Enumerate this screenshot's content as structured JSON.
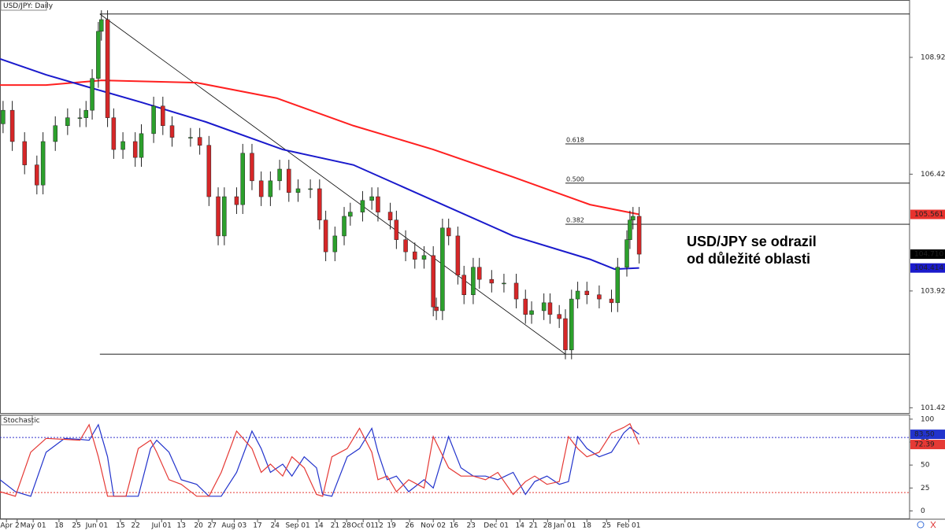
{
  "chart_data": [
    {
      "type": "candlestick",
      "title": "USD/JPY: Daily",
      "x": [
        1,
        4,
        8,
        12,
        14,
        18,
        22,
        26,
        28,
        30,
        32,
        33,
        35,
        37,
        40,
        44,
        46,
        50,
        53,
        56,
        62,
        65,
        68,
        71,
        73,
        77,
        79,
        82,
        85,
        88,
        91,
        94,
        97,
        101,
        104,
        106,
        109,
        112,
        114,
        118,
        121,
        123,
        127,
        129,
        132,
        135,
        138,
        141,
        142,
        144,
        146,
        149,
        151,
        154,
        156,
        160,
        164,
        168,
        171,
        173,
        177,
        179,
        182,
        184,
        186,
        188,
        191,
        195,
        199,
        201,
        204,
        205,
        206,
        208
      ],
      "open": [
        107.5,
        107.79,
        107.12,
        106.62,
        106.19,
        107.12,
        107.46,
        107.63,
        107.63,
        107.79,
        108.47,
        109.48,
        109.73,
        107.63,
        106.95,
        107.12,
        106.78,
        107.29,
        107.88,
        107.46,
        107.21,
        107.21,
        107.04,
        105.94,
        105.1,
        105.94,
        105.77,
        106.87,
        106.28,
        105.94,
        106.28,
        106.53,
        106.03,
        106.11,
        106.11,
        105.44,
        104.76,
        105.1,
        105.52,
        105.61,
        105.86,
        105.94,
        105.61,
        105.44,
        105.02,
        104.76,
        104.6,
        104.68,
        103.58,
        103.5,
        105.27,
        105.1,
        104.26,
        103.84,
        104.43,
        104.17,
        104.09,
        104.09,
        103.75,
        103.42,
        103.5,
        103.67,
        103.42,
        103.33,
        102.66,
        103.75,
        103.92,
        103.84,
        103.75,
        103.67,
        104.43,
        105.02,
        105.44,
        105.52
      ],
      "high": [
        107.99,
        107.99,
        107.32,
        106.82,
        107.32,
        107.66,
        107.83,
        107.83,
        107.99,
        108.67,
        109.68,
        109.93,
        109.93,
        107.83,
        107.32,
        107.32,
        107.49,
        108.08,
        108.08,
        107.66,
        107.41,
        107.41,
        107.24,
        106.14,
        106.14,
        106.14,
        107.07,
        107.07,
        106.48,
        106.48,
        106.73,
        106.73,
        106.31,
        106.31,
        106.31,
        105.64,
        105.3,
        105.72,
        105.81,
        106.06,
        106.14,
        106.14,
        105.81,
        105.64,
        105.22,
        104.96,
        104.88,
        104.88,
        103.78,
        105.47,
        105.47,
        105.3,
        104.46,
        104.63,
        104.63,
        104.37,
        104.29,
        104.29,
        103.95,
        103.7,
        103.87,
        103.87,
        103.62,
        103.53,
        103.95,
        104.12,
        104.12,
        104.04,
        103.95,
        104.63,
        105.22,
        105.64,
        105.72,
        105.72
      ],
      "low": [
        107.3,
        106.92,
        106.42,
        105.99,
        105.99,
        106.92,
        107.26,
        107.43,
        107.43,
        107.59,
        108.27,
        109.28,
        107.43,
        106.75,
        106.75,
        106.58,
        106.58,
        107.09,
        107.26,
        107.01,
        107.01,
        106.84,
        105.74,
        104.9,
        104.9,
        105.57,
        105.57,
        106.08,
        105.74,
        105.74,
        106.08,
        105.83,
        105.83,
        105.91,
        105.24,
        104.56,
        104.56,
        104.9,
        105.32,
        105.41,
        105.66,
        105.41,
        105.24,
        104.82,
        104.56,
        104.4,
        104.4,
        103.38,
        103.3,
        103.3,
        104.9,
        104.06,
        103.64,
        103.64,
        103.97,
        103.89,
        103.89,
        103.55,
        103.22,
        103.22,
        103.3,
        103.22,
        103.13,
        102.46,
        102.46,
        103.55,
        103.64,
        103.55,
        103.47,
        103.47,
        104.23,
        104.82,
        105.24,
        104.51
      ],
      "close": [
        107.79,
        107.12,
        106.62,
        106.19,
        107.12,
        107.46,
        107.63,
        107.63,
        107.79,
        108.47,
        109.48,
        109.73,
        107.63,
        106.95,
        107.12,
        106.78,
        107.29,
        107.88,
        107.46,
        107.21,
        107.21,
        107.04,
        105.94,
        105.1,
        105.94,
        105.77,
        106.87,
        106.28,
        105.94,
        106.28,
        106.53,
        106.03,
        106.11,
        106.11,
        105.44,
        104.76,
        105.1,
        105.52,
        105.61,
        105.86,
        105.94,
        105.61,
        105.44,
        105.02,
        104.76,
        104.6,
        104.68,
        103.58,
        103.5,
        105.27,
        105.1,
        104.26,
        103.84,
        104.43,
        104.17,
        104.09,
        104.09,
        103.75,
        103.42,
        103.5,
        103.67,
        103.42,
        103.33,
        102.66,
        103.75,
        103.92,
        103.84,
        103.75,
        103.67,
        104.43,
        105.02,
        105.44,
        105.52,
        104.71
      ],
      "up_color": "#2ca02c",
      "down_color": "#d62728",
      "xlim": [
        0,
        296
      ],
      "ylim": [
        101.31,
        110.15
      ],
      "yticks": [
        108.922,
        106.422,
        103.922,
        101.422
      ],
      "xticks": [
        {
          "value": 2.1,
          "label": "Apr"
        },
        {
          "value": 5.6,
          "label": "2"
        },
        {
          "value": 10.8,
          "label": "May 01"
        },
        {
          "value": 19.2,
          "label": "18"
        },
        {
          "value": 24.9,
          "label": "25"
        },
        {
          "value": 31.5,
          "label": "Jun 01"
        },
        {
          "value": 39.2,
          "label": "15"
        },
        {
          "value": 44.1,
          "label": "22"
        },
        {
          "value": 52.6,
          "label": "Jul 01"
        },
        {
          "value": 59,
          "label": "13"
        },
        {
          "value": 64.6,
          "label": "20"
        },
        {
          "value": 69,
          "label": "27"
        },
        {
          "value": 76.2,
          "label": "Aug 03"
        },
        {
          "value": 83.8,
          "label": "17"
        },
        {
          "value": 89.5,
          "label": "24"
        },
        {
          "value": 96.9,
          "label": "Sep 01"
        },
        {
          "value": 103.8,
          "label": "14"
        },
        {
          "value": 109,
          "label": "21"
        },
        {
          "value": 112.8,
          "label": "28"
        },
        {
          "value": 118.2,
          "label": "Oct 01"
        },
        {
          "value": 123.3,
          "label": "12"
        },
        {
          "value": 127.4,
          "label": "19"
        },
        {
          "value": 133.3,
          "label": "26"
        },
        {
          "value": 141,
          "label": "Nov 02"
        },
        {
          "value": 147.7,
          "label": "16"
        },
        {
          "value": 153.3,
          "label": "23"
        },
        {
          "value": 161.5,
          "label": "Dec 01"
        },
        {
          "value": 169.2,
          "label": "14"
        },
        {
          "value": 173.6,
          "label": "21"
        },
        {
          "value": 178.2,
          "label": "28"
        },
        {
          "value": 183.8,
          "label": "Jan 01"
        },
        {
          "value": 191,
          "label": "18"
        },
        {
          "value": 197.4,
          "label": "25"
        },
        {
          "value": 204.6,
          "label": "Feb 01"
        }
      ],
      "overlays": [
        {
          "color": "#ff2020",
          "x": [
            0,
            15,
            33,
            64,
            90,
            115,
            141,
            167,
            192,
            208
          ],
          "values": [
            108.33,
            108.33,
            108.43,
            108.38,
            108.05,
            107.46,
            106.95,
            106.36,
            105.77,
            105.561
          ]
        },
        {
          "color": "#1a1acc",
          "x": [
            0,
            15,
            28,
            46,
            67,
            92,
            115,
            141,
            167,
            192,
            200,
            208
          ],
          "values": [
            108.89,
            108.55,
            108.3,
            107.96,
            107.54,
            106.95,
            106.62,
            105.86,
            105.1,
            104.6,
            104.39,
            104.414
          ]
        }
      ],
      "lines": [
        {
          "x": [
            32.5,
            296
          ],
          "y": [
            109.85,
            109.85
          ]
        },
        {
          "x": [
            32.5,
            296
          ],
          "y": [
            102.57,
            102.57
          ]
        },
        {
          "x": [
            32.5,
            184
          ],
          "y": [
            109.85,
            102.57
          ]
        }
      ],
      "fib_levels": [
        {
          "label": "0.618",
          "value": 107.07
        },
        {
          "label": "0.500",
          "value": 106.23
        },
        {
          "label": "0.382",
          "value": 105.35
        }
      ],
      "fib_x": [
        184,
        296
      ],
      "price_labels": [
        {
          "value": 105.561,
          "color": "#e8322e"
        },
        {
          "value": 104.71,
          "label": "104.710",
          "color": "#000000"
        },
        {
          "value": 104.414,
          "color": "#1a1acc"
        }
      ],
      "annotation": [
        "USD/JPY se odrazil",
        "od důležité oblasti"
      ]
    },
    {
      "type": "line",
      "title": "Stochastic",
      "xlim": [
        0,
        296
      ],
      "ylim": [
        -9,
        105
      ],
      "yticks": [
        100,
        75,
        50,
        25,
        0
      ],
      "series": [
        {
          "color": "#2233cc",
          "x": [
            0,
            5,
            10,
            15,
            21,
            26,
            29,
            32,
            35,
            37,
            41,
            45,
            49,
            51,
            55,
            59,
            64,
            68,
            72,
            77,
            82,
            85,
            88,
            92,
            95,
            99,
            103,
            105,
            108,
            113,
            117,
            121,
            123,
            126,
            129,
            133,
            138,
            141,
            146,
            150,
            154,
            158,
            162,
            167,
            171,
            174,
            178,
            182,
            185,
            188,
            191,
            195,
            199,
            203,
            205,
            208
          ],
          "values": [
            34,
            21,
            16,
            64,
            79,
            78,
            77,
            94,
            59,
            16,
            16,
            16,
            68,
            77,
            64,
            34,
            29,
            16,
            16,
            42,
            87,
            68,
            42,
            51,
            38,
            59,
            47,
            18,
            16,
            59,
            68,
            90,
            64,
            34,
            38,
            21,
            34,
            25,
            81,
            47,
            38,
            38,
            34,
            42,
            18,
            32,
            38,
            29,
            32,
            81,
            68,
            59,
            64,
            85,
            91,
            83.5
          ]
        },
        {
          "color": "#e53935",
          "x": [
            0,
            5,
            10,
            15,
            21,
            26,
            29,
            32,
            35,
            37,
            41,
            45,
            49,
            51,
            55,
            59,
            64,
            68,
            72,
            77,
            82,
            85,
            88,
            92,
            95,
            99,
            103,
            105,
            108,
            113,
            117,
            121,
            123,
            126,
            129,
            133,
            138,
            141,
            146,
            150,
            154,
            158,
            162,
            167,
            171,
            174,
            178,
            182,
            185,
            188,
            191,
            195,
            199,
            203,
            205,
            208
          ],
          "values": [
            21,
            16,
            64,
            79,
            78,
            77,
            94,
            59,
            16,
            16,
            16,
            68,
            77,
            64,
            34,
            29,
            16,
            16,
            42,
            87,
            68,
            42,
            51,
            38,
            59,
            47,
            18,
            16,
            59,
            68,
            90,
            64,
            34,
            38,
            21,
            34,
            25,
            81,
            47,
            38,
            38,
            34,
            42,
            18,
            32,
            38,
            29,
            32,
            81,
            68,
            59,
            64,
            85,
            91,
            95,
            72.39
          ]
        }
      ],
      "levels": [
        {
          "value": 80,
          "color": "#3333cc"
        },
        {
          "value": 20,
          "color": "#e53935"
        }
      ],
      "price_labels": [
        {
          "value": 83.5,
          "label": "83.50",
          "color": "#2233cc"
        },
        {
          "value": 72.39,
          "label": "72.39",
          "color": "#e53935"
        }
      ]
    }
  ]
}
